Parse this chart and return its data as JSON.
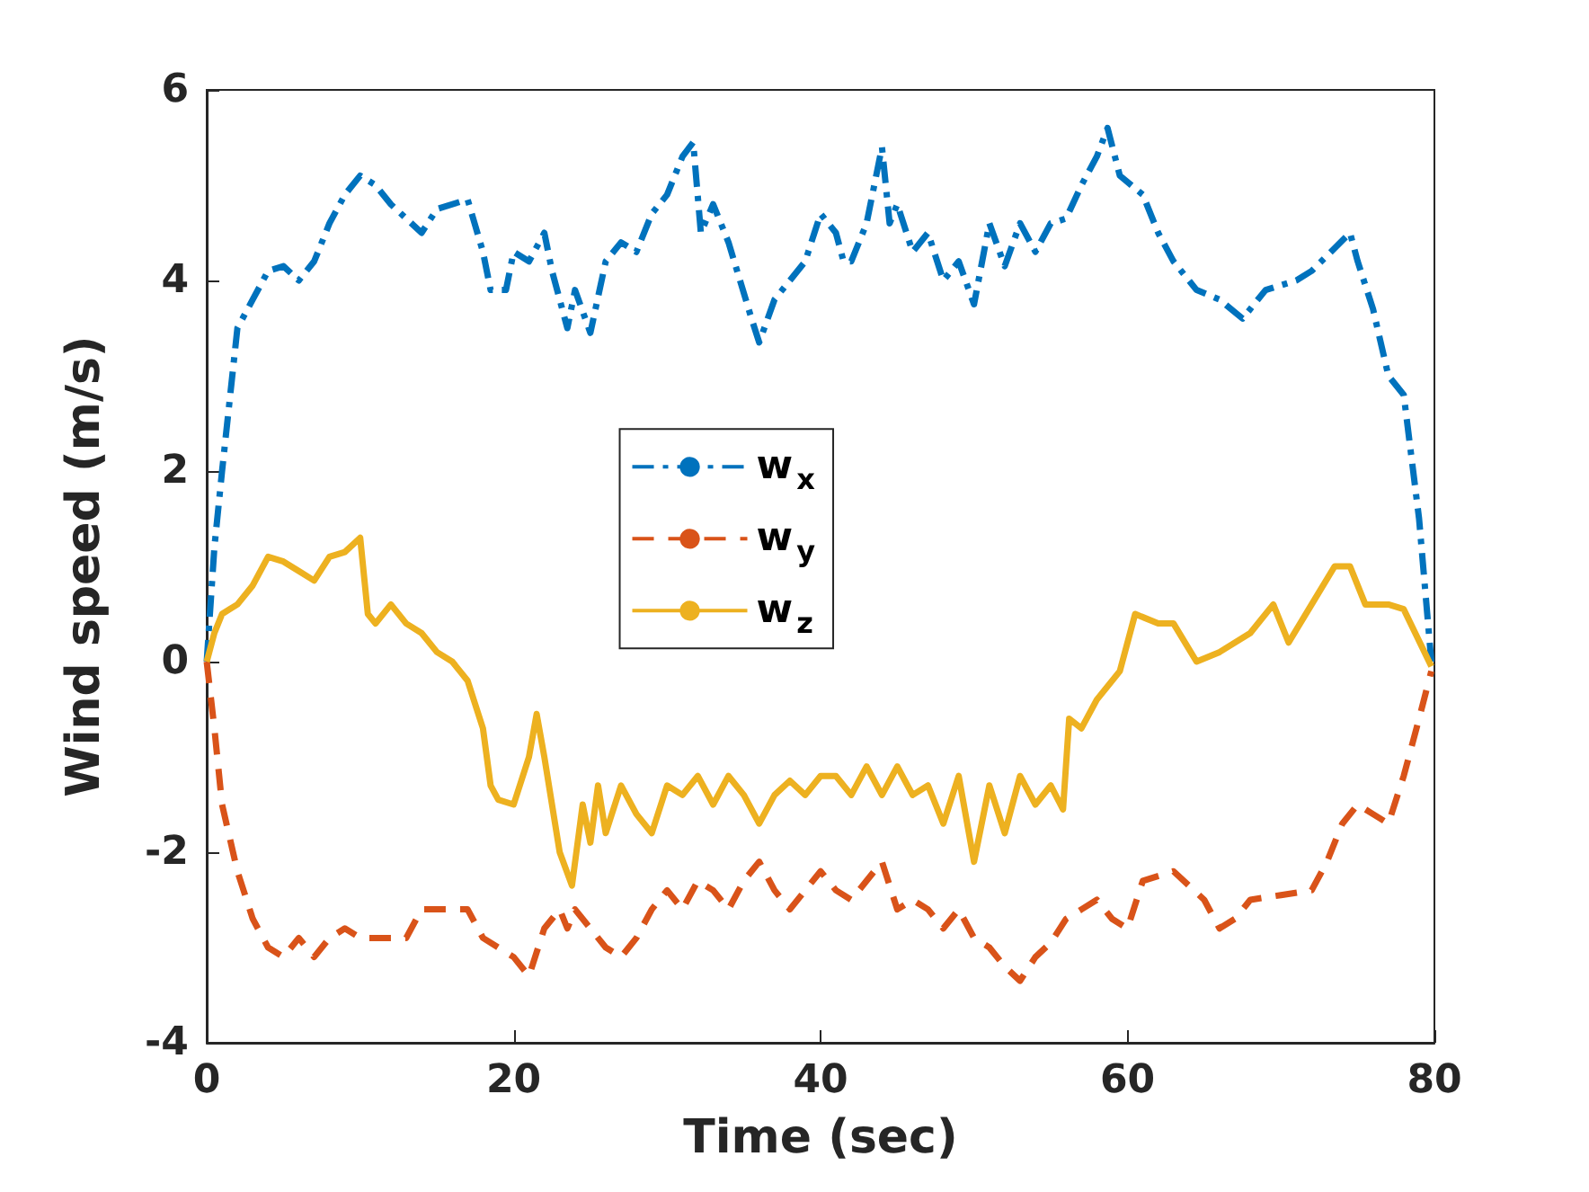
{
  "chart_data": {
    "type": "line",
    "xlabel": "Time (sec)",
    "ylabel": "Wind speed (m/s)",
    "xlim": [
      0,
      80
    ],
    "xticks": [
      0,
      20,
      40,
      60,
      80
    ],
    "ylim": [
      -4,
      6
    ],
    "yticks": [
      -4,
      -2,
      0,
      2,
      4,
      6
    ],
    "grid": false,
    "legend": "center",
    "marker": "none",
    "series": [
      {
        "name": "w$_{x}$",
        "color": "#0072bd",
        "line_style": "dashdot",
        "x": [
          0,
          0.5,
          1,
          2,
          3,
          4,
          5,
          6,
          7,
          8,
          9,
          10,
          11,
          12,
          14,
          15,
          17,
          18,
          18.5,
          19.5,
          20,
          21,
          22,
          22.5,
          23.5,
          24,
          25,
          26,
          27,
          28,
          29,
          30,
          31,
          31.7,
          32.2,
          33,
          34,
          35.5,
          36,
          37,
          38,
          39,
          40,
          41,
          41.5,
          42,
          43,
          44,
          44.5,
          45,
          46,
          47,
          48,
          49,
          50,
          51,
          52,
          53,
          54,
          55,
          56,
          57,
          58,
          58.7,
          59.5,
          61,
          62,
          63,
          64.5,
          66,
          67.5,
          69,
          71,
          72,
          74.5,
          75,
          76,
          77,
          78,
          79,
          79.8
        ],
        "values": [
          0,
          1.2,
          2,
          3.5,
          3.8,
          4.1,
          4.15,
          4,
          4.2,
          4.6,
          4.9,
          5.1,
          5,
          4.8,
          4.5,
          4.75,
          4.85,
          4.3,
          3.9,
          3.9,
          4.3,
          4.2,
          4.5,
          4.1,
          3.5,
          3.9,
          3.45,
          4.2,
          4.4,
          4.3,
          4.7,
          4.9,
          5.3,
          5.45,
          4.5,
          4.8,
          4.4,
          3.6,
          3.35,
          3.8,
          4,
          4.2,
          4.7,
          4.5,
          4.2,
          4.2,
          4.6,
          5.4,
          4.6,
          4.8,
          4.3,
          4.5,
          4,
          4.2,
          3.75,
          4.6,
          4.15,
          4.6,
          4.3,
          4.6,
          4.65,
          5,
          5.3,
          5.6,
          5.1,
          4.9,
          4.5,
          4.2,
          3.9,
          3.8,
          3.6,
          3.9,
          4,
          4.1,
          4.5,
          4.2,
          3.7,
          3,
          2.8,
          1.5,
          0
        ]
      },
      {
        "name": "w$_{y}$",
        "color": "#d95319",
        "line_style": "dashed",
        "x": [
          0,
          0.5,
          1,
          2,
          3,
          4,
          5,
          6,
          7,
          8,
          9,
          10,
          12,
          13,
          14,
          16,
          17,
          18,
          19,
          20,
          21,
          22,
          23,
          23.5,
          24,
          25,
          26,
          27,
          28,
          29,
          30,
          31,
          32,
          33,
          34,
          35,
          36,
          37,
          38,
          39,
          40,
          41,
          42,
          43,
          44,
          45,
          46,
          47,
          48,
          49,
          50,
          51,
          52,
          53,
          54,
          55,
          56,
          57,
          58,
          59,
          60,
          61,
          63,
          65,
          66,
          67,
          68,
          70,
          72,
          73,
          74,
          75,
          76,
          77,
          78,
          79,
          79.8
        ],
        "values": [
          0,
          -0.7,
          -1.5,
          -2.2,
          -2.7,
          -3,
          -3.1,
          -2.9,
          -3.1,
          -2.9,
          -2.8,
          -2.9,
          -2.9,
          -2.9,
          -2.6,
          -2.6,
          -2.6,
          -2.9,
          -3,
          -3.1,
          -3.3,
          -2.8,
          -2.6,
          -2.8,
          -2.6,
          -2.8,
          -3,
          -3.1,
          -2.9,
          -2.6,
          -2.4,
          -2.6,
          -2.3,
          -2.4,
          -2.6,
          -2.3,
          -2.1,
          -2.4,
          -2.6,
          -2.4,
          -2.2,
          -2.4,
          -2.5,
          -2.3,
          -2.1,
          -2.6,
          -2.5,
          -2.6,
          -2.8,
          -2.6,
          -2.9,
          -3,
          -3.2,
          -3.35,
          -3.1,
          -2.95,
          -2.7,
          -2.6,
          -2.5,
          -2.7,
          -2.8,
          -2.3,
          -2.2,
          -2.5,
          -2.8,
          -2.7,
          -2.5,
          -2.45,
          -2.4,
          -2.1,
          -1.7,
          -1.5,
          -1.6,
          -1.7,
          -1.2,
          -0.6,
          -0.1
        ]
      },
      {
        "name": "w$_{z}$",
        "color": "#edb120",
        "line_style": "solid",
        "x": [
          0,
          0.5,
          1,
          2,
          3,
          4,
          5,
          6,
          7,
          8,
          9,
          10,
          10.5,
          11,
          12,
          13,
          14,
          15,
          16,
          17,
          18,
          18.5,
          19,
          20,
          21,
          21.5,
          22,
          23,
          23.8,
          24.5,
          25,
          25.5,
          26,
          27,
          28,
          29,
          30,
          31,
          32,
          33,
          34,
          35,
          36,
          37,
          38,
          39,
          40,
          41,
          42,
          43,
          44,
          45,
          46,
          47,
          48,
          49,
          50,
          51,
          52,
          53,
          54,
          55,
          55.8,
          56.2,
          57,
          58,
          59.5,
          60.5,
          62,
          63,
          64.5,
          66,
          68,
          69.5,
          70.5,
          72,
          73.5,
          74.5,
          75.5,
          77,
          78,
          79.8
        ],
        "values": [
          0,
          0.3,
          0.5,
          0.6,
          0.8,
          1.1,
          1.05,
          0.95,
          0.85,
          1.1,
          1.15,
          1.3,
          0.5,
          0.4,
          0.6,
          0.4,
          0.3,
          0.1,
          0,
          -0.2,
          -0.7,
          -1.3,
          -1.45,
          -1.5,
          -1,
          -0.55,
          -1,
          -2,
          -2.35,
          -1.5,
          -1.9,
          -1.3,
          -1.8,
          -1.3,
          -1.6,
          -1.8,
          -1.3,
          -1.4,
          -1.2,
          -1.5,
          -1.2,
          -1.4,
          -1.7,
          -1.4,
          -1.25,
          -1.4,
          -1.2,
          -1.2,
          -1.4,
          -1.1,
          -1.4,
          -1.1,
          -1.4,
          -1.3,
          -1.7,
          -1.2,
          -2.1,
          -1.3,
          -1.8,
          -1.2,
          -1.5,
          -1.3,
          -1.55,
          -0.6,
          -0.7,
          -0.4,
          -0.1,
          0.5,
          0.4,
          0.4,
          0,
          0.1,
          0.3,
          0.6,
          0.2,
          0.6,
          1,
          1,
          0.6,
          0.6,
          0.55,
          -0.05
        ]
      }
    ]
  }
}
